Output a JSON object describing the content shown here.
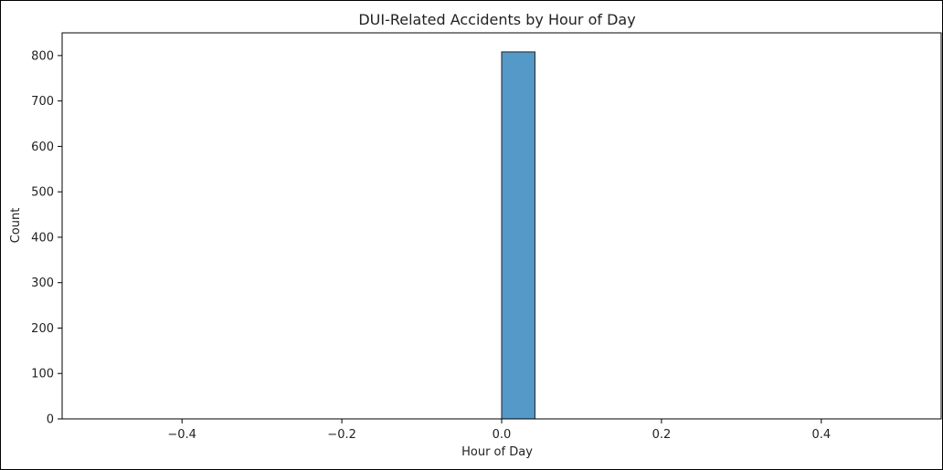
{
  "chart_data": {
    "type": "bar",
    "title": "DUI-Related Accidents by Hour of Day",
    "xlabel": "Hour of Day",
    "ylabel": "Count",
    "xlim": [
      -0.55,
      0.55
    ],
    "ylim": [
      0,
      850
    ],
    "xticks": [
      -0.4,
      -0.2,
      0.0,
      0.2,
      0.4
    ],
    "xtick_labels": [
      "−0.4",
      "−0.2",
      "0.0",
      "0.2",
      "0.4"
    ],
    "yticks": [
      0,
      100,
      200,
      300,
      400,
      500,
      600,
      700,
      800
    ],
    "ytick_labels": [
      "0",
      "100",
      "200",
      "300",
      "400",
      "500",
      "600",
      "700",
      "800"
    ],
    "bins": [
      -0.5,
      -0.45833,
      -0.41667,
      -0.375,
      -0.33333,
      -0.29167,
      -0.25,
      -0.20833,
      -0.16667,
      -0.125,
      -0.08333,
      -0.04167,
      0.0,
      0.04167,
      0.08333,
      0.125,
      0.16667,
      0.20833,
      0.25,
      0.29167,
      0.33333,
      0.375,
      0.41667,
      0.45833,
      0.5
    ],
    "counts": [
      0,
      0,
      0,
      0,
      0,
      0,
      0,
      0,
      0,
      0,
      0,
      0,
      808,
      0,
      0,
      0,
      0,
      0,
      0,
      0,
      0,
      0,
      0,
      0
    ],
    "colors": {
      "bar_fill": "#5499c7",
      "bar_edge": "#1f1f1f",
      "axis": "#000000"
    },
    "grid": false
  }
}
